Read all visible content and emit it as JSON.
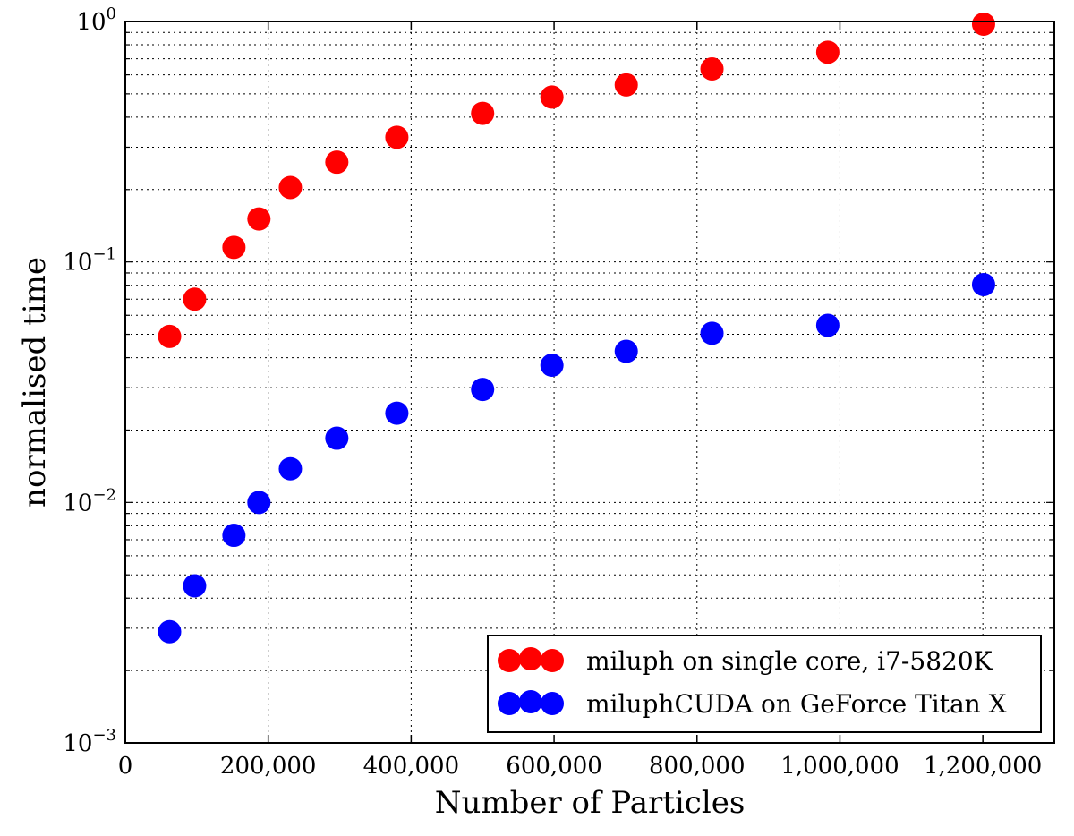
{
  "chart_data": {
    "type": "scatter",
    "title": "",
    "xlabel": "Number of Particles",
    "ylabel": "normalised time",
    "xlim": [
      0,
      1300000
    ],
    "ylim": [
      0.001,
      1
    ],
    "yscale": "log",
    "grid": true,
    "legend_position": "bottom-right",
    "x_ticks": [
      {
        "value": 0,
        "label": "0"
      },
      {
        "value": 200000,
        "label": "200,000"
      },
      {
        "value": 400000,
        "label": "400,000"
      },
      {
        "value": 600000,
        "label": "600,000"
      },
      {
        "value": 800000,
        "label": "800,000"
      },
      {
        "value": 1000000,
        "label": "1,000,000"
      },
      {
        "value": 1200000,
        "label": "1,200,000"
      }
    ],
    "y_ticks": [
      {
        "value": 0.001,
        "base": "10",
        "exp": "−3"
      },
      {
        "value": 0.01,
        "base": "10",
        "exp": "−2"
      },
      {
        "value": 0.1,
        "base": "10",
        "exp": "−1"
      },
      {
        "value": 1,
        "base": "10",
        "exp": "0"
      }
    ],
    "series": [
      {
        "name": "miluph on single core, i7-5820K",
        "color": "#ff0000",
        "x": [
          62000,
          97000,
          152000,
          187000,
          231000,
          296000,
          380000,
          500000,
          597000,
          701000,
          821000,
          983000,
          1201000
        ],
        "y": [
          0.049,
          0.07,
          0.115,
          0.151,
          0.204,
          0.26,
          0.33,
          0.415,
          0.485,
          0.545,
          0.635,
          0.745,
          0.975
        ]
      },
      {
        "name": "miluphCUDA on GeForce Titan X",
        "color": "#0000ff",
        "x": [
          62000,
          97000,
          152000,
          187000,
          231000,
          296000,
          380000,
          500000,
          597000,
          701000,
          821000,
          983000,
          1201000
        ],
        "y": [
          0.0029,
          0.0045,
          0.0073,
          0.01,
          0.0138,
          0.0185,
          0.0235,
          0.0295,
          0.0372,
          0.0425,
          0.0505,
          0.0545,
          0.0805
        ]
      }
    ]
  }
}
